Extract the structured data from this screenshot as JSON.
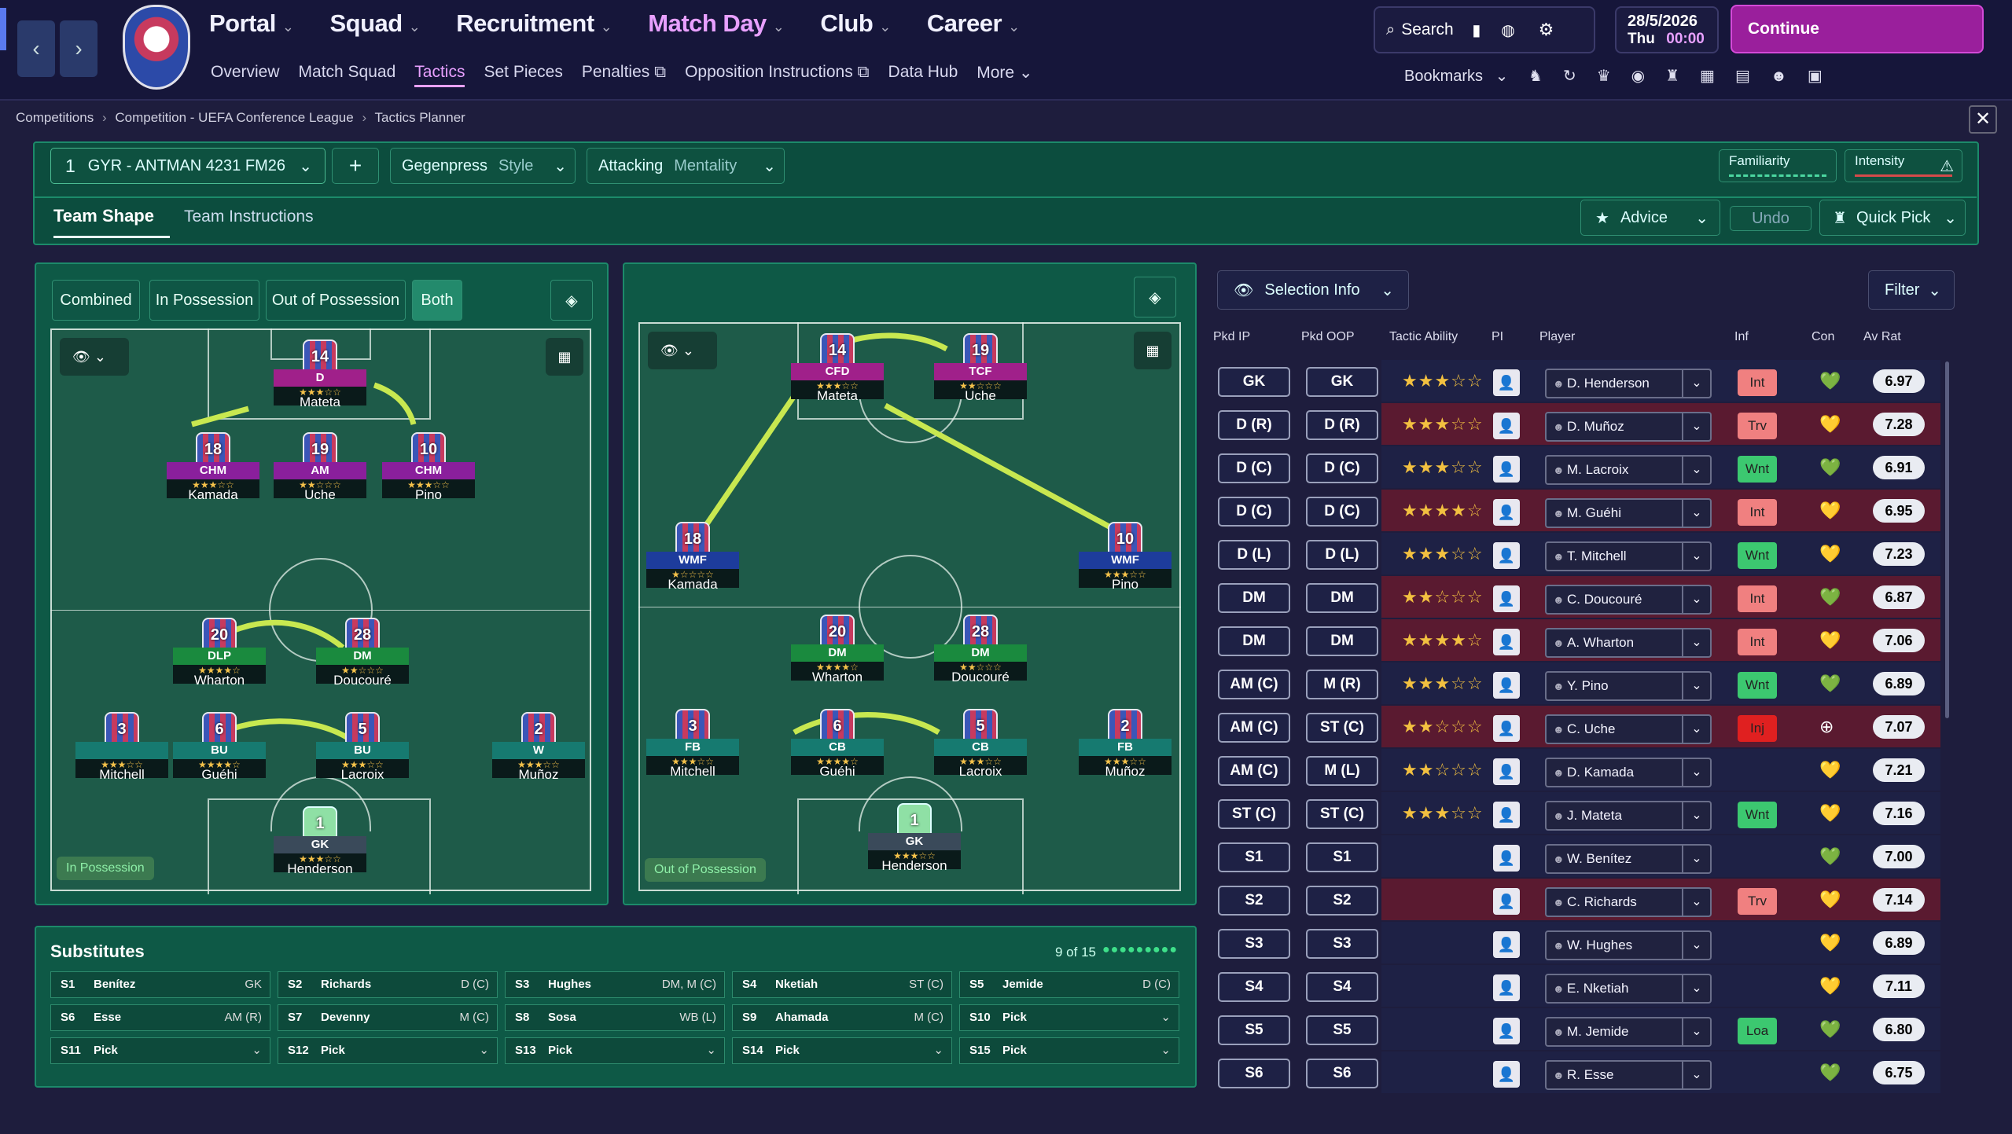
{
  "nav": {
    "main": [
      {
        "label": "Portal",
        "active": false
      },
      {
        "label": "Squad",
        "active": false
      },
      {
        "label": "Recruitment",
        "active": false
      },
      {
        "label": "Match Day",
        "active": true
      },
      {
        "label": "Club",
        "active": false
      },
      {
        "label": "Career",
        "active": false
      }
    ],
    "sub": [
      {
        "label": "Overview"
      },
      {
        "label": "Match Squad"
      },
      {
        "label": "Tactics",
        "active": true
      },
      {
        "label": "Set Pieces"
      },
      {
        "label": "Penalties ⧉"
      },
      {
        "label": "Opposition Instructions ⧉"
      },
      {
        "label": "Data Hub"
      },
      {
        "label": "More ⌄"
      }
    ]
  },
  "top": {
    "search": "Search",
    "date": "28/5/2026",
    "day": "Thu",
    "time": "00:00",
    "continue": "Continue",
    "bookmarks": "Bookmarks"
  },
  "breadcrumb": [
    "Competitions",
    "Competition - UEFA Conference League",
    "Tactics Planner"
  ],
  "tactic": {
    "num": "1",
    "name": "GYR - ANTMAN 4231 FM26",
    "style": "Gegenpress",
    "style_label": "Style",
    "mentality": "Attacking",
    "mentality_label": "Mentality",
    "familiarity": "Familiarity",
    "intensity": "Intensity"
  },
  "tabs": {
    "shape": "Team Shape",
    "instr": "Team Instructions",
    "advice": "Advice",
    "undo": "Undo",
    "quickpick": "Quick Pick"
  },
  "phase": {
    "combined": "Combined",
    "inposs": "In Possession",
    "outposs": "Out of Possession",
    "both": "Both"
  },
  "pitch_labels": {
    "ip": "In Possession",
    "oop": "Out of Possession"
  },
  "ip_cards": [
    {
      "pos": "D",
      "num": "14",
      "name": "Mateta",
      "stars": "★★★☆☆",
      "color": "#a0208a"
    },
    {
      "pos": "CHM",
      "num": "18",
      "name": "Kamada",
      "stars": "★★★☆☆",
      "color": "#8a1f9c"
    },
    {
      "pos": "AM",
      "num": "19",
      "name": "Uche",
      "stars": "★★☆☆☆",
      "color": "#8a1f9c"
    },
    {
      "pos": "CHM",
      "num": "10",
      "name": "Pino",
      "stars": "★★★☆☆",
      "color": "#8a1f9c"
    },
    {
      "pos": "DLP",
      "num": "20",
      "name": "Wharton",
      "stars": "★★★★☆",
      "color": "#1a8a3e"
    },
    {
      "pos": "DM",
      "num": "28",
      "name": "Doucouré",
      "stars": "★★☆☆☆",
      "color": "#1a8a3e"
    },
    {
      "pos": "",
      "num": "3",
      "name": "Mitchell",
      "stars": "★★★☆☆",
      "color": "#167a70"
    },
    {
      "pos": "BU",
      "num": "6",
      "name": "Guéhi",
      "stars": "★★★★☆",
      "color": "#167a70"
    },
    {
      "pos": "BU",
      "num": "5",
      "name": "Lacroix",
      "stars": "★★★☆☆",
      "color": "#167a70"
    },
    {
      "pos": "W",
      "num": "2",
      "name": "Muñoz",
      "stars": "★★★☆☆",
      "color": "#167a70"
    },
    {
      "pos": "GK",
      "num": "1",
      "name": "Henderson",
      "stars": "★★★☆☆",
      "color": "#3a4a5a"
    }
  ],
  "oop_cards": [
    {
      "pos": "CFD",
      "num": "14",
      "name": "Mateta",
      "stars": "★★★☆☆",
      "color": "#a0208a"
    },
    {
      "pos": "TCF",
      "num": "19",
      "name": "Uche",
      "stars": "★★☆☆☆",
      "color": "#a0208a"
    },
    {
      "pos": "WMF",
      "num": "18",
      "name": "Kamada",
      "stars": "★☆☆☆☆",
      "color": "#1d3c9c"
    },
    {
      "pos": "WMF",
      "num": "10",
      "name": "Pino",
      "stars": "★★★☆☆",
      "color": "#1d3c9c"
    },
    {
      "pos": "DM",
      "num": "20",
      "name": "Wharton",
      "stars": "★★★★☆",
      "color": "#1a8a3e"
    },
    {
      "pos": "DM",
      "num": "28",
      "name": "Doucouré",
      "stars": "★★☆☆☆",
      "color": "#1a8a3e"
    },
    {
      "pos": "FB",
      "num": "3",
      "name": "Mitchell",
      "stars": "★★★☆☆",
      "color": "#167a70"
    },
    {
      "pos": "CB",
      "num": "6",
      "name": "Guéhi",
      "stars": "★★★★☆",
      "color": "#167a70"
    },
    {
      "pos": "CB",
      "num": "5",
      "name": "Lacroix",
      "stars": "★★★☆☆",
      "color": "#167a70"
    },
    {
      "pos": "FB",
      "num": "2",
      "name": "Muñoz",
      "stars": "★★★☆☆",
      "color": "#167a70"
    },
    {
      "pos": "GK",
      "num": "1",
      "name": "Henderson",
      "stars": "★★★☆☆",
      "color": "#3a4a5a"
    }
  ],
  "selection": {
    "title": "Selection Info",
    "filter": "Filter",
    "headers": [
      "Pkd IP",
      "Pkd OOP",
      "Tactic Ability",
      "PI",
      "Player",
      "Inf",
      "Con",
      "Av Rat"
    ]
  },
  "rows": [
    {
      "ip": "GK",
      "oop": "GK",
      "stars": "★★★☆☆",
      "player": "D. Henderson",
      "inf": "Int",
      "infc": "#f08080",
      "con": "💚",
      "rat": "6.97",
      "bg": "#1e2145"
    },
    {
      "ip": "D (R)",
      "oop": "D (R)",
      "stars": "★★★☆☆",
      "player": "D. Muñoz",
      "inf": "Trv",
      "infc": "#f08080",
      "con": "💛",
      "rat": "7.28",
      "bg": "#5a1a30"
    },
    {
      "ip": "D (C)",
      "oop": "D (C)",
      "stars": "★★★☆☆",
      "player": "M. Lacroix",
      "inf": "Wnt",
      "infc": "#3cc870",
      "con": "💚",
      "rat": "6.91",
      "bg": "#1e2145"
    },
    {
      "ip": "D (C)",
      "oop": "D (C)",
      "stars": "★★★★☆",
      "player": "M. Guéhi",
      "inf": "Int",
      "infc": "#f08080",
      "con": "💛",
      "rat": "6.95",
      "bg": "#5a1a30"
    },
    {
      "ip": "D (L)",
      "oop": "D (L)",
      "stars": "★★★☆☆",
      "player": "T. Mitchell",
      "inf": "Wnt",
      "infc": "#3cc870",
      "con": "💛",
      "rat": "7.23",
      "bg": "#1e2145"
    },
    {
      "ip": "DM",
      "oop": "DM",
      "stars": "★★☆☆☆",
      "player": "C. Doucouré",
      "inf": "Int",
      "infc": "#f08080",
      "con": "💚",
      "rat": "6.87",
      "bg": "#5a1a30"
    },
    {
      "ip": "DM",
      "oop": "DM",
      "stars": "★★★★☆",
      "player": "A. Wharton",
      "inf": "Int",
      "infc": "#f08080",
      "con": "💛",
      "rat": "7.06",
      "bg": "#5a1a30"
    },
    {
      "ip": "AM (C)",
      "oop": "M (R)",
      "stars": "★★★☆☆",
      "player": "Y. Pino",
      "inf": "Wnt",
      "infc": "#3cc870",
      "con": "💚",
      "rat": "6.89",
      "bg": "#1e2145"
    },
    {
      "ip": "AM (C)",
      "oop": "ST (C)",
      "stars": "★★☆☆☆",
      "player": "C. Uche",
      "inf": "Inj",
      "infc": "#e02020",
      "con": "⊕",
      "rat": "7.07",
      "bg": "#5a1a30"
    },
    {
      "ip": "AM (C)",
      "oop": "M (L)",
      "stars": "★★☆☆☆",
      "player": "D. Kamada",
      "inf": "",
      "infc": "",
      "con": "💛",
      "rat": "7.21",
      "bg": "#1e2145"
    },
    {
      "ip": "ST (C)",
      "oop": "ST (C)",
      "stars": "★★★☆☆",
      "player": "J. Mateta",
      "inf": "Wnt",
      "infc": "#3cc870",
      "con": "💛",
      "rat": "7.16",
      "bg": "#1e2145"
    },
    {
      "ip": "S1",
      "oop": "S1",
      "stars": "",
      "player": "W. Benítez",
      "inf": "",
      "infc": "",
      "con": "💚",
      "rat": "7.00",
      "bg": "#1e2145"
    },
    {
      "ip": "S2",
      "oop": "S2",
      "stars": "",
      "player": "C. Richards",
      "inf": "Trv",
      "infc": "#f08080",
      "con": "💛",
      "rat": "7.14",
      "bg": "#5a1a30"
    },
    {
      "ip": "S3",
      "oop": "S3",
      "stars": "",
      "player": "W. Hughes",
      "inf": "",
      "infc": "",
      "con": "💛",
      "rat": "6.89",
      "bg": "#1e2145"
    },
    {
      "ip": "S4",
      "oop": "S4",
      "stars": "",
      "player": "E. Nketiah",
      "inf": "",
      "infc": "",
      "con": "💛",
      "rat": "7.11",
      "bg": "#1e2145"
    },
    {
      "ip": "S5",
      "oop": "S5",
      "stars": "",
      "player": "M. Jemide",
      "inf": "Loa",
      "infc": "#3cc870",
      "con": "💚",
      "rat": "6.80",
      "bg": "#1e2145"
    },
    {
      "ip": "S6",
      "oop": "S6",
      "stars": "",
      "player": "R. Esse",
      "inf": "",
      "infc": "",
      "con": "💚",
      "rat": "6.75",
      "bg": "#1e2145"
    }
  ],
  "subs": {
    "title": "Substitutes",
    "count": "9 of 15",
    "cells": [
      {
        "slot": "S1",
        "name": "Benítez",
        "pos": "GK"
      },
      {
        "slot": "S2",
        "name": "Richards",
        "pos": "D (C)"
      },
      {
        "slot": "S3",
        "name": "Hughes",
        "pos": "DM, M (C)"
      },
      {
        "slot": "S4",
        "name": "Nketiah",
        "pos": "ST (C)"
      },
      {
        "slot": "S5",
        "name": "Jemide",
        "pos": "D (C)"
      },
      {
        "slot": "S6",
        "name": "Esse",
        "pos": "AM (R)"
      },
      {
        "slot": "S7",
        "name": "Devenny",
        "pos": "M (C)"
      },
      {
        "slot": "S8",
        "name": "Sosa",
        "pos": "WB (L)"
      },
      {
        "slot": "S9",
        "name": "Ahamada",
        "pos": "M (C)"
      },
      {
        "slot": "S10",
        "name": "Pick",
        "pos": "⌄"
      },
      {
        "slot": "S11",
        "name": "Pick",
        "pos": "⌄"
      },
      {
        "slot": "S12",
        "name": "Pick",
        "pos": "⌄"
      },
      {
        "slot": "S13",
        "name": "Pick",
        "pos": "⌄"
      },
      {
        "slot": "S14",
        "name": "Pick",
        "pos": "⌄"
      },
      {
        "slot": "S15",
        "name": "Pick",
        "pos": "⌄"
      }
    ]
  }
}
